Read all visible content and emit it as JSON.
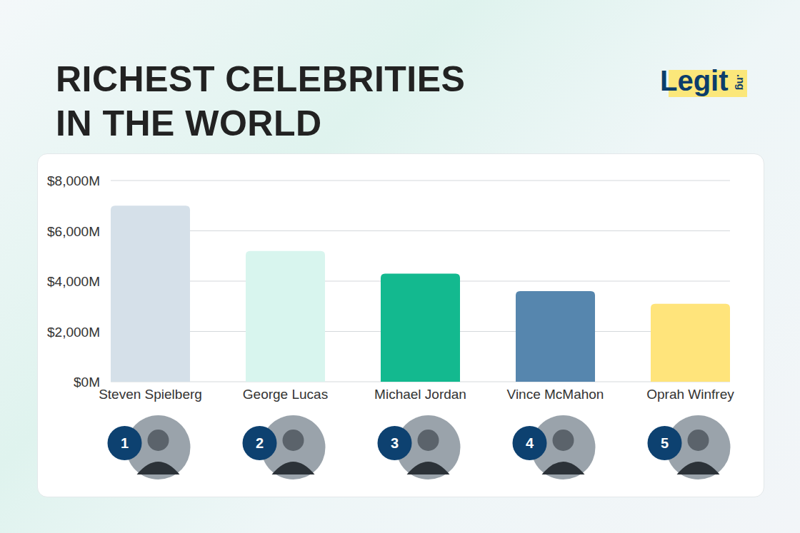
{
  "chart_data": {
    "type": "bar",
    "title": "RICHEST CELEBRITIES IN THE WORLD",
    "categories": [
      "Steven Spielberg",
      "George Lucas",
      "Michael Jordan",
      "Vince McMahon",
      "Oprah Winfrey"
    ],
    "values": [
      7000,
      5200,
      4300,
      3600,
      3100
    ],
    "colors": [
      "#d5e0e9",
      "#d8f5ee",
      "#13b98f",
      "#5686ae",
      "#ffe47b"
    ],
    "ylim": [
      0,
      8000
    ],
    "yticks": [
      {
        "value": 0,
        "label": "$0M"
      },
      {
        "value": 2000,
        "label": "$2,000M"
      },
      {
        "value": 4000,
        "label": "$4,000M"
      },
      {
        "value": 6000,
        "label": "$6,000M"
      },
      {
        "value": 8000,
        "label": "$8,000M"
      }
    ],
    "grid": true
  },
  "brand": {
    "name": "Legit",
    "suffix": ".ng"
  },
  "badges": {
    "ranks": [
      1,
      2,
      3,
      4,
      5
    ]
  }
}
